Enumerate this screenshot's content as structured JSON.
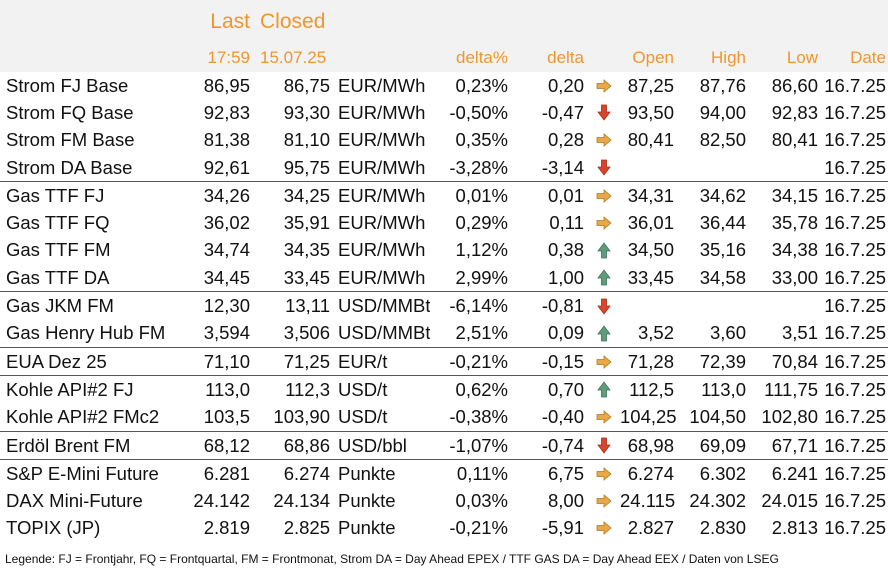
{
  "header": {
    "last_label": "Last",
    "closed_label": "Closed",
    "last_time": "17:59",
    "closed_date": "15.07.25",
    "delta_pct_label": "delta%",
    "delta_label": "delta",
    "open_label": "Open",
    "high_label": "High",
    "low_label": "Low",
    "date_label": "Date"
  },
  "colors": {
    "accent": "#f2952a",
    "header_bg": "#f2f2f2",
    "arrow_right": "#e8a84a",
    "arrow_down": "#d9452a",
    "arrow_up": "#5f9b7d"
  },
  "rows": [
    {
      "name": "Strom FJ Base",
      "last": "86,95",
      "closed": "86,75",
      "unit": "EUR/MWh",
      "delta_pct": "0,23%",
      "delta": "0,20",
      "trend": "right",
      "open": "87,25",
      "high": "87,76",
      "low": "86,60",
      "date": "16.7.25"
    },
    {
      "name": "Strom FQ Base",
      "last": "92,83",
      "closed": "93,30",
      "unit": "EUR/MWh",
      "delta_pct": "-0,50%",
      "delta": "-0,47",
      "trend": "down",
      "open": "93,50",
      "high": "94,00",
      "low": "92,83",
      "date": "16.7.25"
    },
    {
      "name": "Strom FM Base",
      "last": "81,38",
      "closed": "81,10",
      "unit": "EUR/MWh",
      "delta_pct": "0,35%",
      "delta": "0,28",
      "trend": "right",
      "open": "80,41",
      "high": "82,50",
      "low": "80,41",
      "date": "16.7.25"
    },
    {
      "name": "Strom DA Base",
      "last": "92,61",
      "closed": "95,75",
      "unit": "EUR/MWh",
      "delta_pct": "-3,28%",
      "delta": "-3,14",
      "trend": "down",
      "open": "",
      "high": "",
      "low": "",
      "date": "16.7.25"
    },
    {
      "name": "Gas TTF FJ",
      "last": "34,26",
      "closed": "34,25",
      "unit": "EUR/MWh",
      "delta_pct": "0,01%",
      "delta": "0,01",
      "trend": "right",
      "open": "34,31",
      "high": "34,62",
      "low": "34,15",
      "date": "16.7.25",
      "group_start": true
    },
    {
      "name": "Gas TTF FQ",
      "last": "36,02",
      "closed": "35,91",
      "unit": "EUR/MWh",
      "delta_pct": "0,29%",
      "delta": "0,11",
      "trend": "right",
      "open": "36,01",
      "high": "36,44",
      "low": "35,78",
      "date": "16.7.25"
    },
    {
      "name": "Gas TTF FM",
      "last": "34,74",
      "closed": "34,35",
      "unit": "EUR/MWh",
      "delta_pct": "1,12%",
      "delta": "0,38",
      "trend": "up",
      "open": "34,50",
      "high": "35,16",
      "low": "34,38",
      "date": "16.7.25"
    },
    {
      "name": "Gas TTF DA",
      "last": "34,45",
      "closed": "33,45",
      "unit": "EUR/MWh",
      "delta_pct": "2,99%",
      "delta": "1,00",
      "trend": "up",
      "open": "33,45",
      "high": "34,58",
      "low": "33,00",
      "date": "16.7.25"
    },
    {
      "name": "Gas JKM FM",
      "last": "12,30",
      "closed": "13,11",
      "unit": "USD/MMBtu",
      "delta_pct": "-6,14%",
      "delta": "-0,81",
      "trend": "down",
      "open": "",
      "high": "",
      "low": "",
      "date": "16.7.25",
      "group_start": true
    },
    {
      "name": "Gas Henry Hub FM",
      "last": "3,594",
      "closed": "3,506",
      "unit": "USD/MMBtu",
      "delta_pct": "2,51%",
      "delta": "0,09",
      "trend": "up",
      "open": "3,52",
      "high": "3,60",
      "low": "3,51",
      "date": "16.7.25"
    },
    {
      "name": "EUA Dez 25",
      "last": "71,10",
      "closed": "71,25",
      "unit": "EUR/t",
      "delta_pct": "-0,21%",
      "delta": "-0,15",
      "trend": "right",
      "open": "71,28",
      "high": "72,39",
      "low": "70,84",
      "date": "16.7.25",
      "group_start": true
    },
    {
      "name": "Kohle API#2 FJ",
      "last": "113,0",
      "closed": "112,3",
      "unit": "USD/t",
      "delta_pct": "0,62%",
      "delta": "0,70",
      "trend": "up",
      "open": "112,5",
      "high": "113,0",
      "low": "111,75",
      "date": "16.7.25",
      "group_start": true
    },
    {
      "name": "Kohle API#2 FMc2",
      "last": "103,5",
      "closed": "103,90",
      "unit": "USD/t",
      "delta_pct": "-0,38%",
      "delta": "-0,40",
      "trend": "right",
      "open": "104,25",
      "high": "104,50",
      "low": "102,80",
      "date": "16.7.25"
    },
    {
      "name": "Erdöl Brent FM",
      "last": "68,12",
      "closed": "68,86",
      "unit": "USD/bbl",
      "delta_pct": "-1,07%",
      "delta": "-0,74",
      "trend": "down",
      "open": "68,98",
      "high": "69,09",
      "low": "67,71",
      "date": "16.7.25",
      "group_start": true
    },
    {
      "name": "S&P E-Mini Future",
      "last": "6.281",
      "closed": "6.274",
      "unit": "Punkte",
      "delta_pct": "0,11%",
      "delta": "6,75",
      "trend": "right",
      "open": "6.274",
      "high": "6.302",
      "low": "6.241",
      "date": "16.7.25",
      "group_start": true
    },
    {
      "name": "DAX Mini-Future",
      "last": "24.142",
      "closed": "24.134",
      "unit": "Punkte",
      "delta_pct": "0,03%",
      "delta": "8,00",
      "trend": "right",
      "open": "24.115",
      "high": "24.302",
      "low": "24.015",
      "date": "16.7.25"
    },
    {
      "name": "TOPIX (JP)",
      "last": "2.819",
      "closed": "2.825",
      "unit": "Punkte",
      "delta_pct": "-0,21%",
      "delta": "-5,91",
      "trend": "right",
      "open": "2.827",
      "high": "2.830",
      "low": "2.813",
      "date": "16.7.25"
    }
  ],
  "legend": "Legende: FJ = Frontjahr, FQ = Frontquartal, FM = Frontmonat, Strom DA = Day Ahead EPEX / TTF GAS DA = Day Ahead EEX / Daten von LSEG"
}
